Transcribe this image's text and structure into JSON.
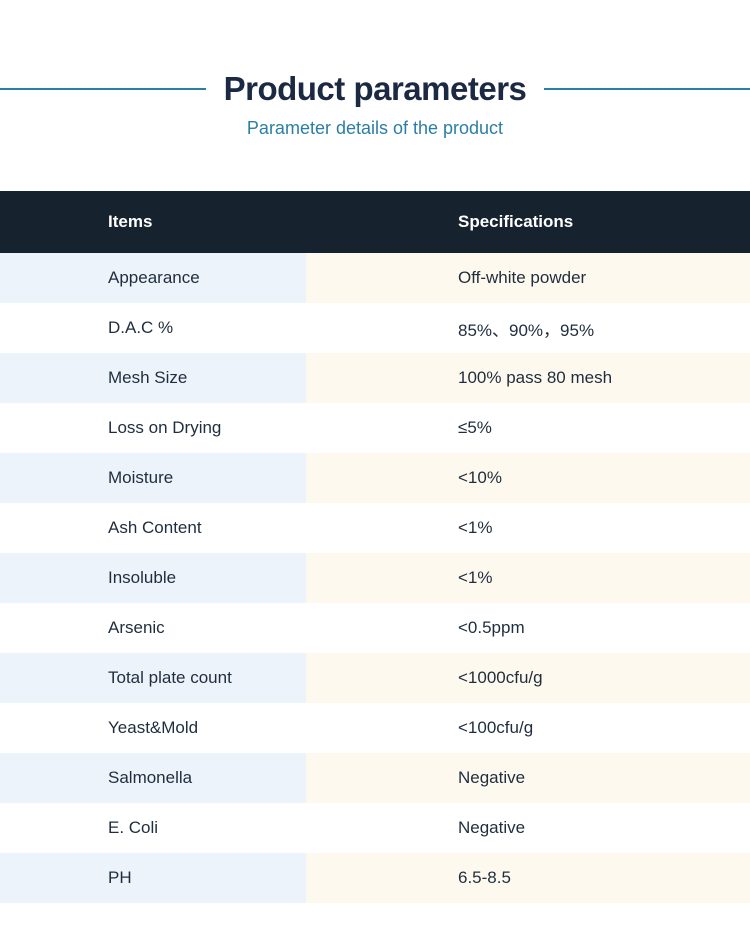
{
  "header": {
    "title": "Product parameters",
    "subtitle": "Parameter details of the product"
  },
  "table": {
    "columns": [
      "Items",
      "Specifications"
    ],
    "rows": [
      {
        "item": "Appearance",
        "spec": "Off-white powder"
      },
      {
        "item": "D.A.C %",
        "spec": "85%、90%，95%"
      },
      {
        "item": "Mesh Size",
        "spec": "100% pass 80 mesh"
      },
      {
        "item": "Loss on Drying",
        "spec": "≤5%"
      },
      {
        "item": "Moisture",
        "spec": "<10%"
      },
      {
        "item": "Ash Content",
        "spec": "<1%"
      },
      {
        "item": "Insoluble",
        "spec": "<1%"
      },
      {
        "item": "Arsenic",
        "spec": "<0.5ppm"
      },
      {
        "item": "Total plate count",
        "spec": "<1000cfu/g"
      },
      {
        "item": "Yeast&Mold",
        "spec": "<100cfu/g"
      },
      {
        "item": "Salmonella",
        "spec": "Negative"
      },
      {
        "item": "E. Coli",
        "spec": "Negative"
      },
      {
        "item": "PH",
        "spec": "6.5-8.5"
      }
    ]
  },
  "colors": {
    "accent": "#2b7ea6",
    "title": "#1b2a42",
    "header-bg": "#17222f",
    "header-text": "#ffffff",
    "row-blue": "#edf3fb",
    "row-cream": "#fef9ee",
    "body-text": "#1f2d3d"
  }
}
